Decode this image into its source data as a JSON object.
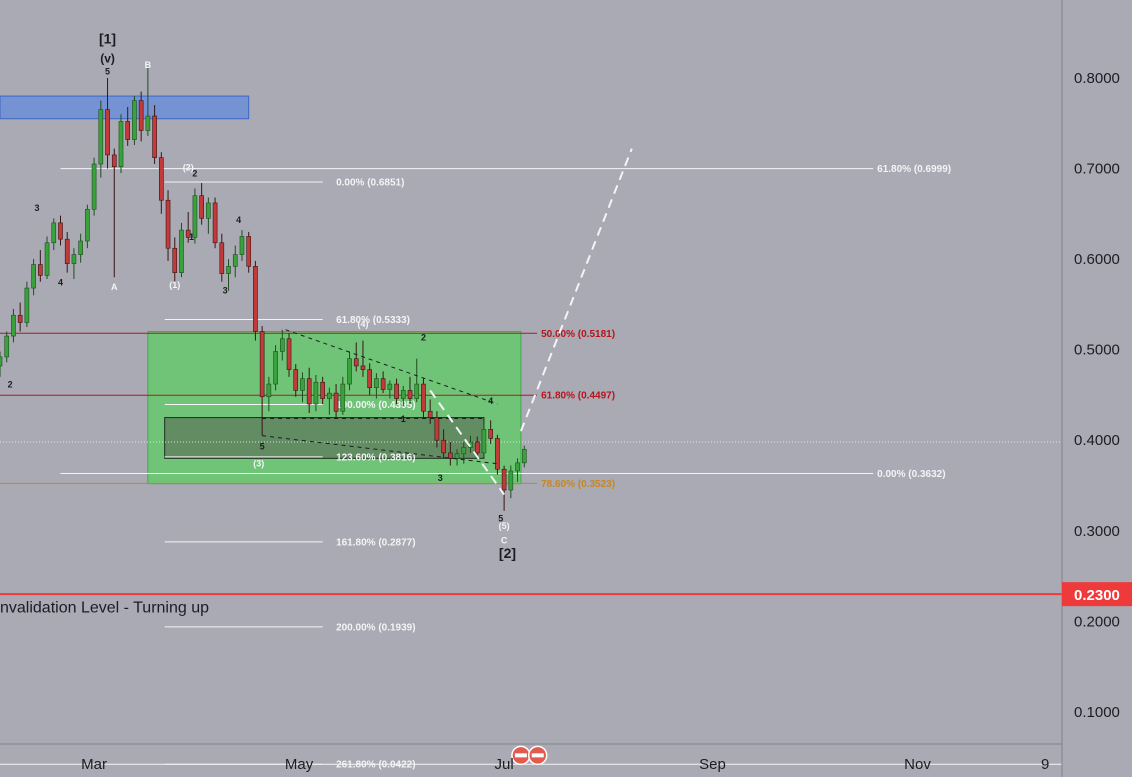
{
  "colors": {
    "background": "#a9aab3",
    "text_dark": "#1c1d24",
    "text_white": "#f4f4f6",
    "fib_white": "#f4f4f6",
    "fib_red": "#b8141c",
    "fib_orange": "#c9861f",
    "box_green": "#63c96a",
    "box_blue": "#6c8fd8",
    "box_dark": "#5f7d5c",
    "candle_up": "#1d4f1e",
    "candle_down": "#3a1414",
    "invalidation_red": "#ee3a3a",
    "axis_line": "#7f818c"
  },
  "chart_data": {
    "type": "candlestick",
    "x_axis": {
      "type": "date",
      "range": [
        "2023-02-01",
        "2023-12-14"
      ],
      "tick_labels": [
        {
          "label": "Mar",
          "date": "2023-03-01"
        },
        {
          "label": "May",
          "date": "2023-05-01"
        },
        {
          "label": "Jul",
          "date": "2023-07-01"
        },
        {
          "label": "Sep",
          "date": "2023-09-01"
        },
        {
          "label": "Nov",
          "date": "2023-11-01"
        },
        {
          "label": "9",
          "date": "2023-12-09"
        }
      ]
    },
    "y_axis": {
      "range": [
        0.0281,
        0.8861
      ],
      "position": "right",
      "tick_labels": [
        "0.8000",
        "0.7000",
        "0.6000",
        "0.5000",
        "0.4000",
        "0.3000",
        "0.2000",
        "0.1000"
      ],
      "tick_values": [
        0.8,
        0.7,
        0.6,
        0.5,
        0.4,
        0.3,
        0.2,
        0.1
      ]
    },
    "price_highlight": {
      "label": "0.2300",
      "value": 0.23
    },
    "current_price_line": 0.398,
    "ohlc": [
      {
        "d": "2023-02-01",
        "o": 0.482,
        "h": 0.498,
        "l": 0.47,
        "c": 0.492
      },
      {
        "d": "2023-02-03",
        "o": 0.492,
        "h": 0.52,
        "l": 0.486,
        "c": 0.515
      },
      {
        "d": "2023-02-05",
        "o": 0.515,
        "h": 0.545,
        "l": 0.508,
        "c": 0.538
      },
      {
        "d": "2023-02-07",
        "o": 0.538,
        "h": 0.552,
        "l": 0.52,
        "c": 0.53
      },
      {
        "d": "2023-02-09",
        "o": 0.53,
        "h": 0.575,
        "l": 0.525,
        "c": 0.568
      },
      {
        "d": "2023-02-11",
        "o": 0.568,
        "h": 0.6,
        "l": 0.56,
        "c": 0.594
      },
      {
        "d": "2023-02-13",
        "o": 0.594,
        "h": 0.61,
        "l": 0.575,
        "c": 0.582
      },
      {
        "d": "2023-02-15",
        "o": 0.582,
        "h": 0.625,
        "l": 0.578,
        "c": 0.618
      },
      {
        "d": "2023-02-17",
        "o": 0.618,
        "h": 0.645,
        "l": 0.61,
        "c": 0.64
      },
      {
        "d": "2023-02-19",
        "o": 0.64,
        "h": 0.648,
        "l": 0.615,
        "c": 0.622
      },
      {
        "d": "2023-02-21",
        "o": 0.622,
        "h": 0.63,
        "l": 0.585,
        "c": 0.595
      },
      {
        "d": "2023-02-23",
        "o": 0.595,
        "h": 0.612,
        "l": 0.578,
        "c": 0.605
      },
      {
        "d": "2023-02-25",
        "o": 0.605,
        "h": 0.628,
        "l": 0.596,
        "c": 0.62
      },
      {
        "d": "2023-02-27",
        "o": 0.62,
        "h": 0.66,
        "l": 0.612,
        "c": 0.655
      },
      {
        "d": "2023-03-01",
        "o": 0.655,
        "h": 0.712,
        "l": 0.648,
        "c": 0.705
      },
      {
        "d": "2023-03-03",
        "o": 0.705,
        "h": 0.775,
        "l": 0.69,
        "c": 0.765
      },
      {
        "d": "2023-03-05",
        "o": 0.765,
        "h": 0.8,
        "l": 0.7,
        "c": 0.715
      },
      {
        "d": "2023-03-07",
        "o": 0.715,
        "h": 0.722,
        "l": 0.58,
        "c": 0.702
      },
      {
        "d": "2023-03-09",
        "o": 0.702,
        "h": 0.76,
        "l": 0.695,
        "c": 0.752
      },
      {
        "d": "2023-03-11",
        "o": 0.752,
        "h": 0.768,
        "l": 0.725,
        "c": 0.732
      },
      {
        "d": "2023-03-13",
        "o": 0.732,
        "h": 0.78,
        "l": 0.726,
        "c": 0.775
      },
      {
        "d": "2023-03-15",
        "o": 0.775,
        "h": 0.785,
        "l": 0.73,
        "c": 0.742
      },
      {
        "d": "2023-03-17",
        "o": 0.742,
        "h": 0.812,
        "l": 0.736,
        "c": 0.758
      },
      {
        "d": "2023-03-19",
        "o": 0.758,
        "h": 0.77,
        "l": 0.705,
        "c": 0.712
      },
      {
        "d": "2023-03-21",
        "o": 0.712,
        "h": 0.718,
        "l": 0.65,
        "c": 0.665
      },
      {
        "d": "2023-03-23",
        "o": 0.665,
        "h": 0.676,
        "l": 0.598,
        "c": 0.612
      },
      {
        "d": "2023-03-25",
        "o": 0.612,
        "h": 0.624,
        "l": 0.575,
        "c": 0.585
      },
      {
        "d": "2023-03-27",
        "o": 0.585,
        "h": 0.64,
        "l": 0.58,
        "c": 0.632
      },
      {
        "d": "2023-03-29",
        "o": 0.632,
        "h": 0.652,
        "l": 0.618,
        "c": 0.624
      },
      {
        "d": "2023-03-31",
        "o": 0.624,
        "h": 0.678,
        "l": 0.617,
        "c": 0.67
      },
      {
        "d": "2023-04-02",
        "o": 0.67,
        "h": 0.684,
        "l": 0.638,
        "c": 0.645
      },
      {
        "d": "2023-04-04",
        "o": 0.645,
        "h": 0.668,
        "l": 0.628,
        "c": 0.662
      },
      {
        "d": "2023-04-06",
        "o": 0.662,
        "h": 0.668,
        "l": 0.612,
        "c": 0.618
      },
      {
        "d": "2023-04-08",
        "o": 0.618,
        "h": 0.628,
        "l": 0.575,
        "c": 0.584
      },
      {
        "d": "2023-04-10",
        "o": 0.584,
        "h": 0.6,
        "l": 0.565,
        "c": 0.592
      },
      {
        "d": "2023-04-12",
        "o": 0.592,
        "h": 0.615,
        "l": 0.58,
        "c": 0.605
      },
      {
        "d": "2023-04-14",
        "o": 0.605,
        "h": 0.632,
        "l": 0.598,
        "c": 0.625
      },
      {
        "d": "2023-04-16",
        "o": 0.625,
        "h": 0.63,
        "l": 0.585,
        "c": 0.592
      },
      {
        "d": "2023-04-18",
        "o": 0.592,
        "h": 0.598,
        "l": 0.51,
        "c": 0.52
      },
      {
        "d": "2023-04-20",
        "o": 0.52,
        "h": 0.526,
        "l": 0.405,
        "c": 0.448
      },
      {
        "d": "2023-04-22",
        "o": 0.448,
        "h": 0.47,
        "l": 0.432,
        "c": 0.462
      },
      {
        "d": "2023-04-24",
        "o": 0.462,
        "h": 0.505,
        "l": 0.455,
        "c": 0.498
      },
      {
        "d": "2023-04-26",
        "o": 0.498,
        "h": 0.522,
        "l": 0.488,
        "c": 0.512
      },
      {
        "d": "2023-04-28",
        "o": 0.512,
        "h": 0.518,
        "l": 0.47,
        "c": 0.478
      },
      {
        "d": "2023-04-30",
        "o": 0.478,
        "h": 0.484,
        "l": 0.448,
        "c": 0.455
      },
      {
        "d": "2023-05-02",
        "o": 0.455,
        "h": 0.475,
        "l": 0.442,
        "c": 0.468
      },
      {
        "d": "2023-05-04",
        "o": 0.468,
        "h": 0.48,
        "l": 0.43,
        "c": 0.44
      },
      {
        "d": "2023-05-06",
        "o": 0.44,
        "h": 0.472,
        "l": 0.432,
        "c": 0.464
      },
      {
        "d": "2023-05-08",
        "o": 0.464,
        "h": 0.47,
        "l": 0.44,
        "c": 0.446
      },
      {
        "d": "2023-05-10",
        "o": 0.446,
        "h": 0.458,
        "l": 0.428,
        "c": 0.452
      },
      {
        "d": "2023-05-12",
        "o": 0.452,
        "h": 0.462,
        "l": 0.425,
        "c": 0.432
      },
      {
        "d": "2023-05-14",
        "o": 0.432,
        "h": 0.47,
        "l": 0.428,
        "c": 0.462
      },
      {
        "d": "2023-05-16",
        "o": 0.462,
        "h": 0.498,
        "l": 0.455,
        "c": 0.49
      },
      {
        "d": "2023-05-18",
        "o": 0.49,
        "h": 0.508,
        "l": 0.476,
        "c": 0.482
      },
      {
        "d": "2023-05-20",
        "o": 0.482,
        "h": 0.51,
        "l": 0.47,
        "c": 0.478
      },
      {
        "d": "2023-05-22",
        "o": 0.478,
        "h": 0.485,
        "l": 0.45,
        "c": 0.458
      },
      {
        "d": "2023-05-24",
        "o": 0.458,
        "h": 0.474,
        "l": 0.446,
        "c": 0.468
      },
      {
        "d": "2023-05-26",
        "o": 0.468,
        "h": 0.476,
        "l": 0.452,
        "c": 0.456
      },
      {
        "d": "2023-05-28",
        "o": 0.456,
        "h": 0.466,
        "l": 0.446,
        "c": 0.462
      },
      {
        "d": "2023-05-30",
        "o": 0.462,
        "h": 0.468,
        "l": 0.44,
        "c": 0.446
      },
      {
        "d": "2023-06-01",
        "o": 0.446,
        "h": 0.46,
        "l": 0.438,
        "c": 0.455
      },
      {
        "d": "2023-06-03",
        "o": 0.455,
        "h": 0.47,
        "l": 0.44,
        "c": 0.446
      },
      {
        "d": "2023-06-05",
        "o": 0.446,
        "h": 0.49,
        "l": 0.442,
        "c": 0.462
      },
      {
        "d": "2023-06-07",
        "o": 0.462,
        "h": 0.468,
        "l": 0.425,
        "c": 0.432
      },
      {
        "d": "2023-06-09",
        "o": 0.432,
        "h": 0.445,
        "l": 0.418,
        "c": 0.425
      },
      {
        "d": "2023-06-11",
        "o": 0.425,
        "h": 0.432,
        "l": 0.392,
        "c": 0.4
      },
      {
        "d": "2023-06-13",
        "o": 0.4,
        "h": 0.412,
        "l": 0.38,
        "c": 0.386
      },
      {
        "d": "2023-06-15",
        "o": 0.386,
        "h": 0.398,
        "l": 0.372,
        "c": 0.38
      },
      {
        "d": "2023-06-17",
        "o": 0.38,
        "h": 0.39,
        "l": 0.372,
        "c": 0.385
      },
      {
        "d": "2023-06-19",
        "o": 0.385,
        "h": 0.398,
        "l": 0.374,
        "c": 0.392
      },
      {
        "d": "2023-06-21",
        "o": 0.392,
        "h": 0.405,
        "l": 0.386,
        "c": 0.398
      },
      {
        "d": "2023-06-23",
        "o": 0.398,
        "h": 0.404,
        "l": 0.38,
        "c": 0.386
      },
      {
        "d": "2023-06-25",
        "o": 0.386,
        "h": 0.418,
        "l": 0.382,
        "c": 0.412
      },
      {
        "d": "2023-06-27",
        "o": 0.412,
        "h": 0.422,
        "l": 0.396,
        "c": 0.402
      },
      {
        "d": "2023-06-29",
        "o": 0.402,
        "h": 0.406,
        "l": 0.362,
        "c": 0.368
      },
      {
        "d": "2023-07-01",
        "o": 0.368,
        "h": 0.372,
        "l": 0.322,
        "c": 0.345
      },
      {
        "d": "2023-07-03",
        "o": 0.345,
        "h": 0.372,
        "l": 0.336,
        "c": 0.366
      },
      {
        "d": "2023-07-05",
        "o": 0.366,
        "h": 0.38,
        "l": 0.354,
        "c": 0.375
      },
      {
        "d": "2023-07-07",
        "o": 0.375,
        "h": 0.394,
        "l": 0.37,
        "c": 0.39
      }
    ],
    "fib_levels": [
      {
        "label": "0.00% (0.6851)",
        "value": 0.6851,
        "color": "white",
        "from": "2023-03-22",
        "to": "2023-05-08"
      },
      {
        "label": "61.80% (0.5333)",
        "value": 0.5333,
        "color": "white",
        "from": "2023-03-22",
        "to": "2023-05-08"
      },
      {
        "label": "100.00% (0.4395)",
        "value": 0.4395,
        "color": "white",
        "from": "2023-03-22",
        "to": "2023-05-08"
      },
      {
        "label": "123.60% (0.3816)",
        "value": 0.3816,
        "color": "white",
        "from": "2023-03-22",
        "to": "2023-05-08"
      },
      {
        "label": "161.80% (0.2877)",
        "value": 0.2877,
        "color": "white",
        "from": "2023-03-22",
        "to": "2023-05-08"
      },
      {
        "label": "200.00% (0.1939)",
        "value": 0.1939,
        "color": "white",
        "from": "2023-03-22",
        "to": "2023-05-08"
      },
      {
        "label": "261.80% (0.0422)",
        "value": 0.0422,
        "color": "white",
        "from": "2023-03-22",
        "to": "2023-05-08"
      },
      {
        "label": "50.00% (0.5181)",
        "value": 0.5181,
        "color": "red",
        "from": "2023-02-01",
        "to": "2023-07-08"
      },
      {
        "label": "61.80% (0.4497)",
        "value": 0.4497,
        "color": "red",
        "from": "2023-02-01",
        "to": "2023-07-08"
      },
      {
        "label": "78.60% (0.3523)",
        "value": 0.3523,
        "color": "orange",
        "from": "2023-02-01",
        "to": "2023-07-08"
      },
      {
        "label": "61.80% (0.6999)",
        "value": 0.6999,
        "color": "white",
        "from": "2023-02-19",
        "to": "2023-10-14"
      },
      {
        "label": "0.00% (0.3632)",
        "value": 0.3632,
        "color": "white",
        "from": "2023-02-19",
        "to": "2023-10-14"
      }
    ],
    "wave_labels": [
      {
        "text": "[1]",
        "date": "2023-03-05",
        "price": 0.838,
        "size": "large"
      },
      {
        "text": "(v)",
        "date": "2023-03-05",
        "price": 0.817,
        "size": "medium"
      },
      {
        "text": "5",
        "date": "2023-03-05",
        "price": 0.804,
        "size": "small"
      },
      {
        "text": "B",
        "date": "2023-03-17",
        "price": 0.811,
        "size": "small"
      },
      {
        "text": "3",
        "date": "2023-02-12",
        "price": 0.653,
        "size": "small"
      },
      {
        "text": "4",
        "date": "2023-02-19",
        "price": 0.571,
        "size": "small"
      },
      {
        "text": "A",
        "date": "2023-03-07",
        "price": 0.566,
        "size": "small"
      },
      {
        "text": "(2)",
        "date": "2023-03-29",
        "price": 0.698,
        "size": "small"
      },
      {
        "text": "2",
        "date": "2023-03-31",
        "price": 0.691,
        "size": "small"
      },
      {
        "text": "1",
        "date": "2023-03-30",
        "price": 0.621,
        "size": "small"
      },
      {
        "text": "(1)",
        "date": "2023-03-25",
        "price": 0.568,
        "size": "small"
      },
      {
        "text": "4",
        "date": "2023-04-13",
        "price": 0.64,
        "size": "small"
      },
      {
        "text": "3",
        "date": "2023-04-09",
        "price": 0.562,
        "size": "small"
      },
      {
        "text": "2",
        "date": "2023-02-04",
        "price": 0.458,
        "size": "small"
      },
      {
        "text": "(4)",
        "date": "2023-05-20",
        "price": 0.525,
        "size": "small"
      },
      {
        "text": "2",
        "date": "2023-06-07",
        "price": 0.51,
        "size": "small"
      },
      {
        "text": "4",
        "date": "2023-06-27",
        "price": 0.44,
        "size": "small"
      },
      {
        "text": "1",
        "date": "2023-06-01",
        "price": 0.42,
        "size": "small"
      },
      {
        "text": "5",
        "date": "2023-04-20",
        "price": 0.39,
        "size": "small"
      },
      {
        "text": "(3)",
        "date": "2023-04-19",
        "price": 0.371,
        "size": "small"
      },
      {
        "text": "3",
        "date": "2023-06-12",
        "price": 0.355,
        "size": "small"
      },
      {
        "text": "5",
        "date": "2023-06-30",
        "price": 0.31,
        "size": "small"
      },
      {
        "text": "(5)",
        "date": "2023-07-01",
        "price": 0.302,
        "size": "small"
      },
      {
        "text": "C",
        "date": "2023-07-01",
        "price": 0.286,
        "size": "small"
      },
      {
        "text": "[2]",
        "date": "2023-07-02",
        "price": 0.27,
        "size": "large"
      }
    ],
    "annotations": [
      {
        "text": "nvalidation Level - Turning up",
        "date": "2023-02-01",
        "price": 0.21
      }
    ],
    "zones": [
      {
        "name": "blue-zone",
        "from": "2023-02-01",
        "to": "2023-04-16",
        "top": 0.78,
        "bottom": 0.755,
        "color": "blue"
      },
      {
        "name": "green-zone",
        "from": "2023-03-17",
        "to": "2023-07-06",
        "top": 0.52,
        "bottom": 0.352,
        "color": "green"
      },
      {
        "name": "dark-zone",
        "from": "2023-03-22",
        "to": "2023-06-25",
        "top": 0.425,
        "bottom": 0.38,
        "color": "dark"
      }
    ],
    "trend_lines": [
      {
        "name": "wedge-upper",
        "points": [
          {
            "date": "2023-04-27",
            "price": 0.522
          },
          {
            "date": "2023-06-29",
            "price": 0.44
          }
        ],
        "style": "dashed-dark"
      },
      {
        "name": "wedge-lower",
        "points": [
          {
            "date": "2023-04-20",
            "price": 0.405
          },
          {
            "date": "2023-06-29",
            "price": 0.374
          }
        ],
        "style": "dashed-dark"
      },
      {
        "name": "flat-dash",
        "points": [
          {
            "date": "2023-04-20",
            "price": 0.424
          },
          {
            "date": "2023-06-25",
            "price": 0.424
          }
        ],
        "style": "dashed-dark"
      },
      {
        "name": "wave-c-down",
        "points": [
          {
            "date": "2023-06-09",
            "price": 0.455
          },
          {
            "date": "2023-07-01",
            "price": 0.34
          }
        ],
        "style": "dashed-white"
      },
      {
        "name": "projection-up",
        "points": [
          {
            "date": "2023-07-06",
            "price": 0.41
          },
          {
            "date": "2023-08-08",
            "price": 0.722
          }
        ],
        "style": "dashed-white"
      }
    ],
    "event_badges": [
      {
        "date": "2023-07-06",
        "price": 0.052
      },
      {
        "date": "2023-07-11",
        "price": 0.052
      }
    ],
    "grid": false
  }
}
